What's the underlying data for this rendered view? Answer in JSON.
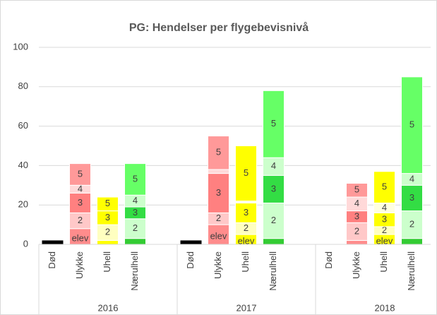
{
  "chart_data": {
    "type": "stacked_bar",
    "title": "PG: Hendelser per flygebevisnivå",
    "groups": [
      "2016",
      "2017",
      "2018"
    ],
    "categories": [
      "Død",
      "Ulykke",
      "Uhell",
      "Nærulhell",
      "Død",
      "Ulykke",
      "Uhell",
      "Nærulhell",
      "Død",
      "Ulykke",
      "Uhell",
      "Nærulhell"
    ],
    "series": [
      {
        "name": "elev",
        "values": [
          2,
          8,
          2,
          3,
          2,
          10,
          5,
          3,
          0,
          2,
          5,
          3
        ]
      },
      {
        "name": "2",
        "values": [
          0,
          8,
          8,
          10,
          0,
          6,
          6,
          18,
          0,
          9,
          4,
          14
        ]
      },
      {
        "name": "3",
        "values": [
          0,
          10,
          7,
          6,
          0,
          20,
          10,
          14,
          0,
          6,
          7,
          13
        ]
      },
      {
        "name": "4",
        "values": [
          0,
          4,
          0,
          6,
          0,
          2,
          1,
          9,
          0,
          7,
          5,
          6
        ]
      },
      {
        "name": "5",
        "values": [
          0,
          11,
          7,
          16,
          0,
          17,
          28,
          34,
          0,
          7,
          16,
          49
        ]
      }
    ],
    "colors": {
      "Død": [
        "#000000",
        "#000000",
        "#000000",
        "#000000",
        "#000000"
      ],
      "Ulykke": [
        "#ff8c8c",
        "#ffc8c8",
        "#ff8080",
        "#ffd9d9",
        "#ff9999"
      ],
      "Uhell": [
        "#ffff00",
        "#ffffc0",
        "#ffff00",
        "#ffffe0",
        "#ffff00"
      ],
      "Nærulhell": [
        "#33cc33",
        "#ccffcc",
        "#33dd44",
        "#ccffcc",
        "#66ff66"
      ]
    },
    "ylim": [
      0,
      100
    ],
    "yticks": [
      0,
      20,
      40,
      60,
      80,
      100
    ],
    "grid": true
  }
}
